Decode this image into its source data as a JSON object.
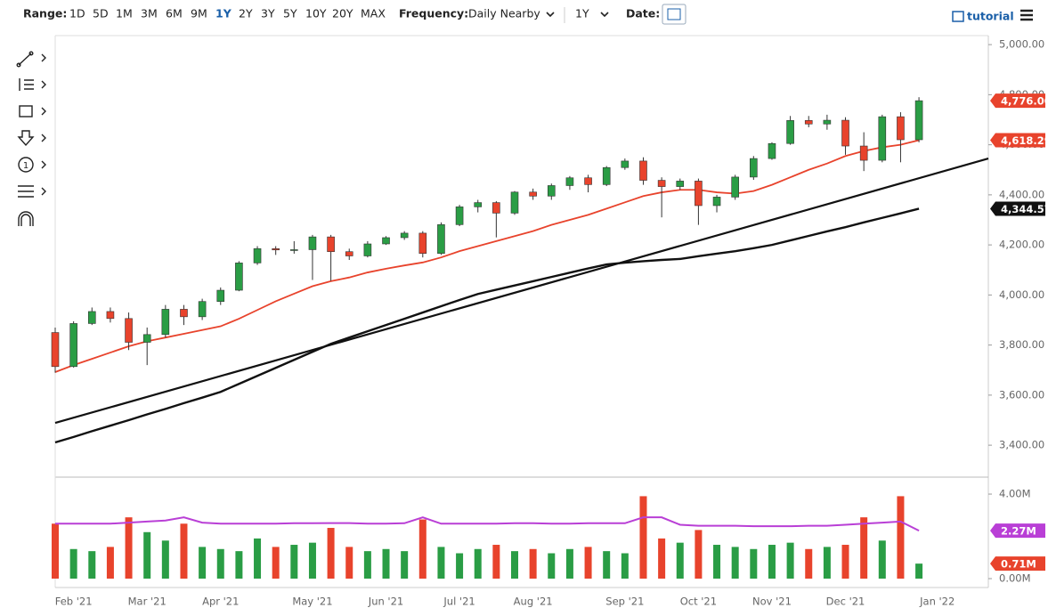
{
  "toolbar": {
    "range_label": "Range:",
    "ranges": [
      "1D",
      "5D",
      "1M",
      "3M",
      "6M",
      "9M",
      "1Y",
      "2Y",
      "3Y",
      "5Y",
      "10Y",
      "20Y",
      "MAX"
    ],
    "selected_range": "1Y",
    "frequency_label": "Frequency:",
    "frequency": "Daily Nearby",
    "period": "1Y",
    "date_label": "Date:",
    "tutorial": "tutorial"
  },
  "chart_data": [
    {
      "type": "candlestick",
      "categories": [
        null,
        "Feb '21",
        null,
        null,
        null,
        "Mar '21",
        null,
        null,
        null,
        "Apr '21",
        null,
        null,
        null,
        null,
        "May '21",
        null,
        null,
        null,
        "Jun '21",
        null,
        null,
        null,
        "Jul '21",
        null,
        null,
        null,
        "Aug '21",
        null,
        null,
        null,
        null,
        "Sep '21",
        null,
        null,
        null,
        "Oct '21",
        null,
        null,
        null,
        "Nov '21",
        null,
        null,
        null,
        "Dec '21",
        null,
        null,
        null,
        null,
        "Jan '22",
        null,
        null
      ],
      "open": [
        3850,
        3714,
        3886,
        3934,
        3906,
        3811,
        3842,
        3943,
        3913,
        3974,
        4019,
        4128,
        4185,
        4180,
        4181,
        4232,
        4173,
        4156,
        4204,
        4229,
        4247,
        4166,
        4281,
        4352,
        4369,
        4327,
        4411,
        4395,
        4437,
        4468,
        4441,
        4509,
        4535,
        4458,
        4433,
        4455,
        4357,
        4391,
        4471,
        4545,
        4605,
        4697,
        4683,
        4698,
        4595,
        4538,
        4712,
        4620,
        null,
        null,
        null
      ],
      "high": [
        3870,
        3895,
        3950,
        3950,
        3930,
        3870,
        3960,
        3960,
        3985,
        4030,
        4135,
        4195,
        4195,
        4215,
        4240,
        4240,
        4185,
        4215,
        4235,
        4255,
        4255,
        4290,
        4360,
        4380,
        4375,
        4415,
        4425,
        4445,
        4475,
        4480,
        4515,
        4545,
        4550,
        4470,
        4465,
        4465,
        4400,
        4480,
        4555,
        4610,
        4715,
        4715,
        4720,
        4710,
        4650,
        4720,
        4730,
        4790,
        null,
        null,
        null
      ],
      "low": [
        3690,
        3710,
        3880,
        3890,
        3780,
        3720,
        3830,
        3880,
        3900,
        3960,
        4015,
        4120,
        4160,
        4165,
        4060,
        4056,
        4140,
        4150,
        4200,
        4220,
        4150,
        4160,
        4275,
        4330,
        4230,
        4320,
        4380,
        4380,
        4420,
        4410,
        4435,
        4500,
        4440,
        4310,
        4420,
        4280,
        4330,
        4380,
        4460,
        4540,
        4600,
        4670,
        4660,
        4560,
        4495,
        4530,
        4530,
        4610,
        null,
        null,
        null
      ],
      "close": [
        3714,
        3886,
        3934,
        3906,
        3811,
        3842,
        3943,
        3913,
        3974,
        4019,
        4128,
        4185,
        4180,
        4181,
        4232,
        4173,
        4156,
        4204,
        4229,
        4247,
        4166,
        4281,
        4352,
        4369,
        4327,
        4411,
        4395,
        4437,
        4468,
        4441,
        4509,
        4535,
        4458,
        4433,
        4455,
        4357,
        4391,
        4471,
        4545,
        4605,
        4697,
        4683,
        4698,
        4595,
        4538,
        4712,
        4620,
        4776,
        null,
        null,
        null
      ],
      "up_color": "#2a9d45",
      "down_color": "#e8432c",
      "close_label": "4,776.00",
      "series": [
        {
          "color": "#e8432c",
          "label": "4,618.29",
          "values": [
            3692,
            3720,
            3745,
            3770,
            3795,
            3815,
            3830,
            3845,
            3860,
            3875,
            3905,
            3940,
            3975,
            4005,
            4035,
            4055,
            4070,
            4090,
            4105,
            4118,
            4130,
            4150,
            4175,
            4195,
            4215,
            4235,
            4255,
            4280,
            4300,
            4320,
            4345,
            4370,
            4395,
            4410,
            4420,
            4420,
            4410,
            4405,
            4415,
            4440,
            4470,
            4500,
            4525,
            4555,
            4575,
            4590,
            4600,
            4618.29,
            null,
            null,
            null
          ]
        },
        {
          "color": "#111111",
          "label": "4,344.57",
          "values": [
            3411,
            3433,
            3456,
            3478,
            3500,
            3523,
            3545,
            3568,
            3590,
            3613,
            3645,
            3677,
            3709,
            3741,
            3773,
            3805,
            3830,
            3855,
            3880,
            3905,
            3930,
            3955,
            3980,
            4004,
            4021,
            4038,
            4055,
            4072,
            4089,
            4106,
            4122,
            4129,
            4135,
            4140,
            4144,
            4155,
            4165,
            4175,
            4187,
            4200,
            4218,
            4236,
            4254,
            4271,
            4290,
            4308,
            4326,
            4344.57,
            null,
            null,
            null
          ]
        }
      ],
      "trendline": {
        "color": "#111111",
        "values": [
          3489,
          4545
        ]
      },
      "ylim": [
        3276,
        5036
      ],
      "yticks": [
        {
          "value": 3400,
          "label": "3,400.00"
        },
        {
          "value": 3600,
          "label": "3,600.00"
        },
        {
          "value": 3800,
          "label": "3,800.00"
        },
        {
          "value": 4000,
          "label": "4,000.00"
        },
        {
          "value": 4200,
          "label": "4,200.00"
        },
        {
          "value": 4400,
          "label": "4,400.00"
        },
        {
          "value": 4600,
          "label": "4,600.00"
        },
        {
          "value": 4800,
          "label": "4,800.00"
        },
        {
          "value": 5000,
          "label": "5,000.00"
        }
      ]
    },
    {
      "type": "bar",
      "values": [
        2.6,
        1.4,
        1.3,
        1.5,
        2.9,
        2.2,
        1.8,
        2.6,
        1.5,
        1.4,
        1.3,
        1.9,
        1.5,
        1.6,
        1.7,
        2.4,
        1.5,
        1.3,
        1.4,
        1.3,
        2.8,
        1.5,
        1.2,
        1.4,
        1.6,
        1.3,
        1.4,
        1.2,
        1.4,
        1.5,
        1.3,
        1.2,
        3.9,
        1.9,
        1.7,
        2.3,
        1.6,
        1.5,
        1.4,
        1.6,
        1.7,
        1.4,
        1.5,
        1.6,
        2.9,
        1.8,
        3.9,
        0.71,
        null,
        null,
        null
      ],
      "last_label": "0.71M",
      "series": [
        {
          "color": "#b93fd6",
          "label": "2.27M",
          "values": [
            2.6,
            2.6,
            2.6,
            2.6,
            2.65,
            2.7,
            2.75,
            2.9,
            2.65,
            2.6,
            2.6,
            2.6,
            2.6,
            2.62,
            2.62,
            2.63,
            2.63,
            2.6,
            2.6,
            2.62,
            2.9,
            2.6,
            2.6,
            2.6,
            2.6,
            2.62,
            2.62,
            2.6,
            2.6,
            2.62,
            2.62,
            2.62,
            2.9,
            2.9,
            2.55,
            2.5,
            2.5,
            2.5,
            2.48,
            2.48,
            2.48,
            2.5,
            2.5,
            2.55,
            2.6,
            2.65,
            2.7,
            2.27,
            null,
            null,
            null
          ]
        }
      ],
      "ylim": [
        -0.21,
        4.76
      ],
      "yticks": [
        {
          "value": 0,
          "label": "0.00M"
        },
        {
          "value": 4,
          "label": "4.00M"
        }
      ]
    }
  ]
}
